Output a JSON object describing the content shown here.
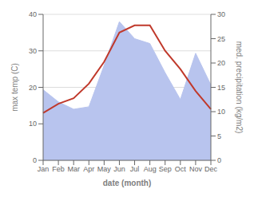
{
  "chart_data": {
    "type": "line",
    "categories": [
      "Jan",
      "Feb",
      "Mar",
      "Apr",
      "May",
      "Jun",
      "Jul",
      "Aug",
      "Sep",
      "Oct",
      "Nov",
      "Dec"
    ],
    "xlabel": "date (month)",
    "ylabel": "max temp (C)",
    "y2label": "med. precipitation (kg/m2)",
    "series": [
      {
        "type": "area",
        "axis": "y2",
        "color": "#b8c4ee",
        "values": [
          14.5,
          12.0,
          10.5,
          11.0,
          19.5,
          28.5,
          25.0,
          24.0,
          18.0,
          12.5,
          22.0,
          15.5
        ]
      },
      {
        "type": "line",
        "color": "#c0392b",
        "values": [
          13.0,
          15.5,
          17.0,
          21.0,
          27.0,
          35.0,
          37.0,
          37.0,
          30.0,
          25.0,
          19.0,
          14.0
        ]
      }
    ],
    "ylim": [
      0,
      40
    ],
    "yticks": [
      0,
      10,
      20,
      30,
      40
    ],
    "y2lim": [
      0,
      30
    ],
    "y2ticks": [
      0,
      5,
      10,
      15,
      20,
      25,
      30
    ],
    "grid": true
  }
}
